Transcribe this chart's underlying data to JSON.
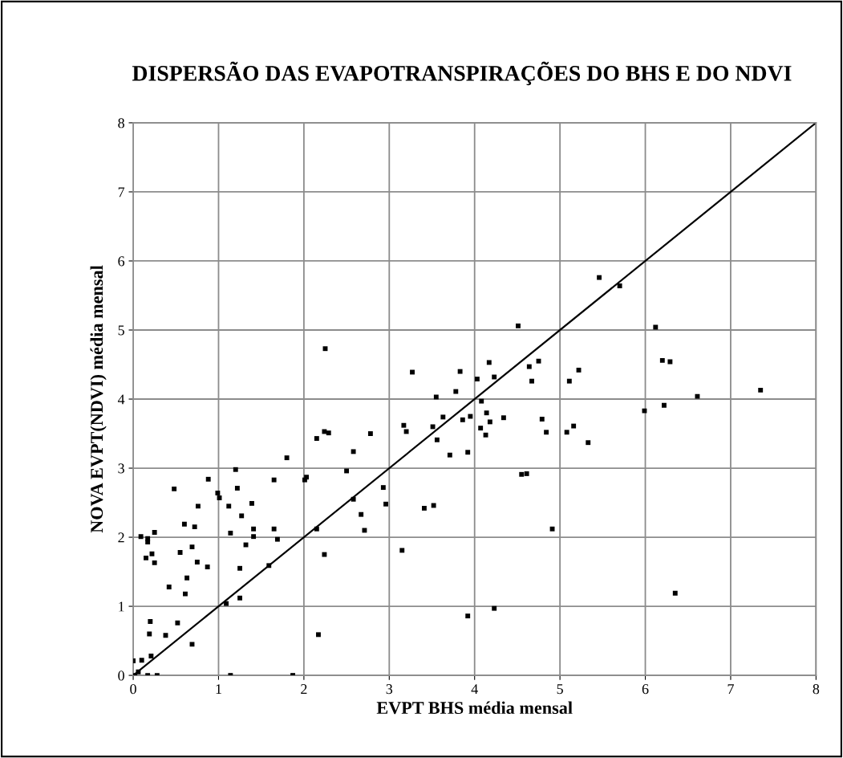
{
  "chart_data": {
    "type": "scatter",
    "title": "DISPERSÃO DAS EVAPOTRANSPIRAÇÕES DO BHS E DO NDVI",
    "xlabel": "EVPT BHS média mensal",
    "ylabel": "NOVA EVPT(NDVI) média mensal",
    "xlim": [
      0,
      8
    ],
    "ylim": [
      0,
      8
    ],
    "xticks": [
      0,
      1,
      2,
      3,
      4,
      5,
      6,
      7,
      8
    ],
    "yticks": [
      0,
      1,
      2,
      3,
      4,
      5,
      6,
      7,
      8
    ],
    "grid": true,
    "series": [
      {
        "color": "#000000",
        "marker": "square",
        "x": [
          0,
          0.1,
          0.21,
          0.06,
          0.02,
          0.17,
          0.28,
          1.14,
          1.87,
          0.2,
          0.19,
          0.38,
          0.52,
          0.69,
          1.09,
          1.25,
          2.17,
          0.42,
          0.61,
          0.63,
          0.15,
          0.22,
          0.25,
          0.09,
          0.17,
          0.17,
          0.25,
          0.55,
          0.69,
          0.75,
          0.87,
          0.6,
          0.72,
          0.76,
          0.48,
          0.88,
          0.99,
          1.01,
          1.12,
          1.2,
          1.22,
          1.39,
          1.27,
          1.14,
          1.41,
          1.41,
          1.65,
          1.69,
          1.32,
          1.25,
          1.59,
          2.24,
          2.15,
          1.65,
          1.8,
          2.01,
          2.03,
          2.5,
          2.58,
          2.58,
          2.67,
          2.71,
          2.25,
          2.15,
          2.24,
          2.29,
          2.78,
          3.17,
          3.2,
          4.51,
          4.17,
          4.75,
          4.64,
          5.22,
          3.83,
          3.27,
          4.03,
          4.23,
          4.67,
          5.11,
          3.78,
          3.55,
          4.08,
          3.63,
          3.95,
          4.14,
          4.34,
          3.86,
          4.18,
          4.79,
          3.51,
          4.07,
          4.13,
          4.84,
          5.08,
          5.16,
          3.56,
          5.33,
          3.71,
          3.92,
          4.55,
          4.61,
          2.93,
          2.96,
          3.41,
          3.52,
          4.91,
          3.15,
          3.92,
          4.23,
          5.46,
          5.7,
          6.12,
          6.2,
          6.29,
          7.35,
          6.61,
          6.22,
          5.99,
          6.35
        ],
        "values": [
          0.21,
          0.22,
          0.28,
          0.05,
          0,
          0,
          0,
          0,
          0,
          0.78,
          0.6,
          0.58,
          0.76,
          0.45,
          1.04,
          1.12,
          0.59,
          1.28,
          1.18,
          1.41,
          1.7,
          1.76,
          1.63,
          2.01,
          1.98,
          1.93,
          2.07,
          1.78,
          1.86,
          1.64,
          1.57,
          2.19,
          2.15,
          2.45,
          2.7,
          2.84,
          2.64,
          2.57,
          2.45,
          2.98,
          2.71,
          2.49,
          2.31,
          2.06,
          2.12,
          2.01,
          2.12,
          1.97,
          1.89,
          1.55,
          1.59,
          1.75,
          2.12,
          2.83,
          3.15,
          2.83,
          2.87,
          2.96,
          3.24,
          2.55,
          2.33,
          2.1,
          4.73,
          3.43,
          3.53,
          3.51,
          3.5,
          3.62,
          3.53,
          5.06,
          4.53,
          4.55,
          4.47,
          4.42,
          4.4,
          4.39,
          4.29,
          4.32,
          4.26,
          4.26,
          4.11,
          4.03,
          3.97,
          3.74,
          3.75,
          3.8,
          3.73,
          3.7,
          3.67,
          3.71,
          3.6,
          3.58,
          3.48,
          3.52,
          3.52,
          3.61,
          3.41,
          3.37,
          3.19,
          3.23,
          2.91,
          2.92,
          2.72,
          2.48,
          2.42,
          2.46,
          2.12,
          1.81,
          0.86,
          0.97,
          5.76,
          5.64,
          5.04,
          4.56,
          4.54,
          4.13,
          4.04,
          3.91,
          3.83,
          1.19
        ]
      },
      {
        "type": "line",
        "color": "#000000",
        "marker": "none",
        "line_style": "solid",
        "x": [
          0,
          8
        ],
        "values": [
          0,
          8
        ]
      }
    ]
  }
}
